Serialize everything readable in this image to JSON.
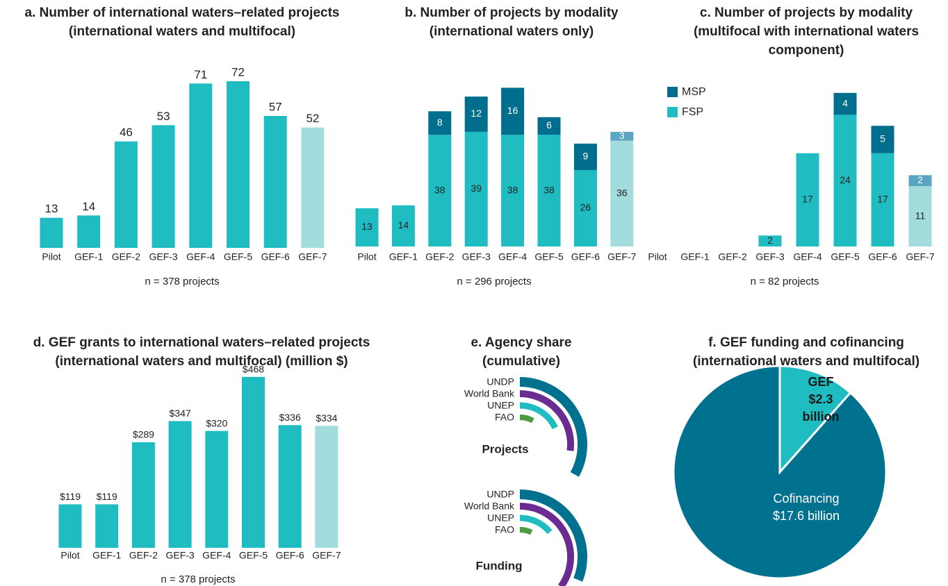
{
  "chart_data": [
    {
      "type": "bar",
      "title": "a. Number of international waters–related projects",
      "subtitle": "(international waters and multifocal)",
      "categories": [
        "Pilot",
        "GEF-1",
        "GEF-2",
        "GEF-3",
        "GEF-4",
        "GEF-5",
        "GEF-6",
        "GEF-7"
      ],
      "values": [
        13,
        14,
        46,
        53,
        71,
        72,
        57,
        52
      ],
      "colors": [
        "#1fbcc1",
        "#1fbcc1",
        "#1fbcc1",
        "#1fbcc1",
        "#1fbcc1",
        "#1fbcc1",
        "#1fbcc1",
        "#a3dcdc"
      ],
      "ylim": [
        0,
        75
      ],
      "note": "n = 378 projects"
    },
    {
      "type": "stacked_bar",
      "title": "b. Number of projects by modality",
      "subtitle": "(international waters only)",
      "categories": [
        "Pilot",
        "GEF-1",
        "GEF-2",
        "GEF-3",
        "GEF-4",
        "GEF-5",
        "GEF-6",
        "GEF-7"
      ],
      "series": [
        {
          "label_color": "#ffffff",
          "colors": [
            "#006e8c",
            "#006e8c",
            "#006e8c",
            "#006e8c",
            "#006e8c",
            "#006e8c",
            "#006e8c",
            "#5aa5c2"
          ],
          "values": [
            null,
            null,
            8,
            12,
            16,
            6,
            9,
            3
          ]
        },
        {
          "label_color": "#222222",
          "colors": [
            "#1fbcc1",
            "#1fbcc1",
            "#1fbcc1",
            "#1fbcc1",
            "#1fbcc1",
            "#1fbcc1",
            "#1fbcc1",
            "#a3dcdc"
          ],
          "values": [
            13,
            14,
            38,
            39,
            38,
            38,
            26,
            36
          ]
        }
      ],
      "ylim": [
        0,
        60
      ],
      "note": "n = 296 projects"
    },
    {
      "type": "stacked_bar",
      "title": "c. Number of projects by modality",
      "subtitle": "(multifocal with international waters component)",
      "categories": [
        "Pilot",
        "GEF-1",
        "GEF-2",
        "GEF-3",
        "GEF-4",
        "GEF-5",
        "GEF-6",
        "GEF-7"
      ],
      "series": [
        {
          "name": "MSP",
          "color": "#006e8c",
          "label_color": "#ffffff",
          "colors": [
            "#006e8c",
            "#006e8c",
            "#006e8c",
            "#006e8c",
            "#006e8c",
            "#006e8c",
            "#006e8c",
            "#5aa5c2"
          ],
          "values": [
            null,
            null,
            null,
            null,
            null,
            4,
            5,
            2
          ]
        },
        {
          "name": "FSP",
          "color": "#1fbcc1",
          "label_color": "#222222",
          "colors": [
            "#1fbcc1",
            "#1fbcc1",
            "#1fbcc1",
            "#1fbcc1",
            "#1fbcc1",
            "#1fbcc1",
            "#1fbcc1",
            "#a3dcdc"
          ],
          "values": [
            null,
            null,
            null,
            2,
            17,
            24,
            17,
            11
          ]
        }
      ],
      "legend": "top-left",
      "ylim": [
        0,
        30
      ],
      "note": "n = 82 projects"
    },
    {
      "type": "bar",
      "title": "d. GEF grants to international waters–related projects",
      "subtitle": "(international waters and multifocal) (million $)",
      "categories": [
        "Pilot",
        "GEF-1",
        "GEF-2",
        "GEF-3",
        "GEF-4",
        "GEF-5",
        "GEF-6",
        "GEF-7"
      ],
      "values": [
        119,
        119,
        289,
        347,
        320,
        468,
        336,
        334
      ],
      "value_labels": [
        "$119",
        "$119",
        "$289",
        "$347",
        "$320",
        "$468",
        "$336",
        "$334"
      ],
      "colors": [
        "#1fbcc1",
        "#1fbcc1",
        "#1fbcc1",
        "#1fbcc1",
        "#1fbcc1",
        "#1fbcc1",
        "#1fbcc1",
        "#a3dcdc"
      ],
      "ylim": [
        0,
        500
      ],
      "note": "n = 378 projects"
    },
    {
      "type": "radial_bar",
      "title": "e. Agency share",
      "subtitle": "(cumulative)",
      "categories": [
        "UNDP",
        "World Bank",
        "UNEP",
        "FAO"
      ],
      "colors": [
        "#00718f",
        "#6a2c91",
        "#1fbcc1",
        "#4e9a3f"
      ],
      "rlim": [
        0,
        100
      ],
      "panels": [
        {
          "name": "Projects",
          "values": [
            33,
            27,
            18,
            8
          ]
        },
        {
          "name": "Funding",
          "values": [
            31,
            35,
            14,
            7
          ]
        }
      ]
    },
    {
      "type": "pie",
      "title": "f. GEF funding and cofinancing",
      "subtitle": "(international waters and multifocal)",
      "categories": [
        "GEF",
        "Cofinancing"
      ],
      "values": [
        2.3,
        17.6
      ],
      "value_labels": [
        "$2.3 billion",
        "$17.6 billion"
      ],
      "colors": [
        "#1fbcc1",
        "#00718f"
      ]
    }
  ]
}
